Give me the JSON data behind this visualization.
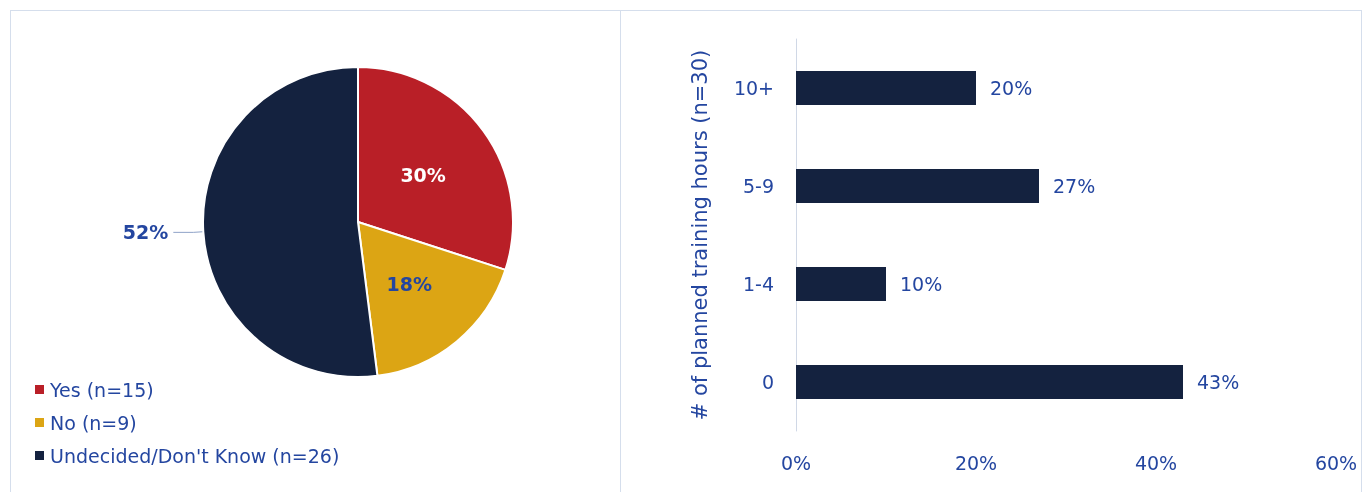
{
  "chart_data": [
    {
      "type": "pie",
      "categories": [
        "Yes (n=15)",
        "No (n=9)",
        "Undecided/Don't Know (n=26)"
      ],
      "values": [
        30,
        18,
        52
      ],
      "colors": [
        "#b91f27",
        "#dca514",
        "#14223f"
      ],
      "value_labels": [
        "30%",
        "18%",
        "52%"
      ],
      "legend": "bottom left"
    },
    {
      "type": "bar",
      "orientation": "horizontal",
      "ylabel": "# of planned training hours (n=30)",
      "categories": [
        "10+",
        "5-9",
        "1-4",
        "0"
      ],
      "values": [
        20,
        27,
        10,
        43
      ],
      "color": "#14223f",
      "value_labels": [
        "20%",
        "27%",
        "10%",
        "43%"
      ],
      "xlim": [
        0,
        60
      ],
      "xticks": [
        {
          "value": 0,
          "label": "0%"
        },
        {
          "value": 20,
          "label": "20%"
        },
        {
          "value": 40,
          "label": "40%"
        },
        {
          "value": 60,
          "label": "60%"
        }
      ],
      "grid": false,
      "legend": false
    }
  ]
}
